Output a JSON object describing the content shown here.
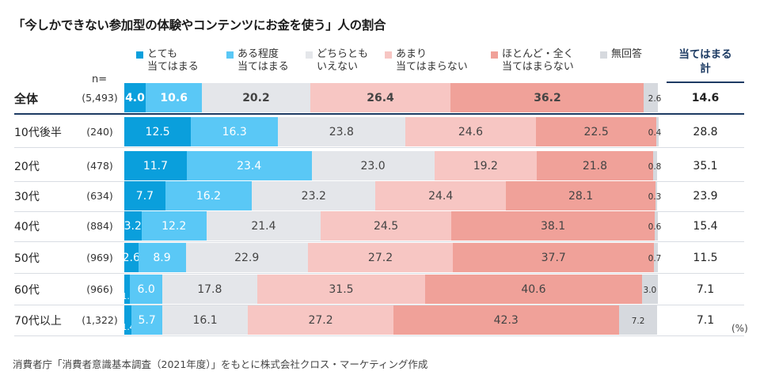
{
  "chart_data": {
    "type": "bar",
    "orientation": "horizontal",
    "stacked": true,
    "title": "「今しかできない参加型の体験やコンテンツにお金を使う」人の割合",
    "n_header": "n=",
    "total_header": [
      "当てはまる",
      "計"
    ],
    "unit": "(%)",
    "series": [
      {
        "name": [
          "とても",
          "当てはまる"
        ],
        "color": "#0a9fdc",
        "text_color": "#ffffff"
      },
      {
        "name": [
          "ある程度",
          "当てはまる"
        ],
        "color": "#5ac8f6",
        "text_color": "#ffffff"
      },
      {
        "name": [
          "どちらとも",
          "いえない"
        ],
        "color": "#e4e6ea",
        "text_color": "#444444"
      },
      {
        "name": [
          "あまり",
          "当てはまらない"
        ],
        "color": "#f7c6c3",
        "text_color": "#444444"
      },
      {
        "name": [
          "ほとんど・全く",
          "当てはまらない"
        ],
        "color": "#f0a199",
        "text_color": "#444444"
      },
      {
        "name": [
          "無回答"
        ],
        "color": "#d6d9de",
        "text_color": "#333333"
      }
    ],
    "rows": [
      {
        "label": "全体",
        "n": "(5,493)",
        "values": [
          4.0,
          10.6,
          20.2,
          26.4,
          36.2,
          2.6
        ],
        "labels": [
          "4.0",
          "10.6",
          "20.2",
          "26.4",
          "36.2",
          "2.6"
        ],
        "total": "14.6",
        "bold": true
      },
      {
        "label": "10代後半",
        "n": "(240)",
        "values": [
          12.5,
          16.3,
          23.8,
          24.6,
          22.5,
          0.4
        ],
        "labels": [
          "12.5",
          "16.3",
          "23.8",
          "24.6",
          "22.5",
          "0.4"
        ],
        "total": "28.8",
        "bold": false
      },
      {
        "label": "20代",
        "n": "(478)",
        "values": [
          11.7,
          23.4,
          23.0,
          19.2,
          21.8,
          0.8
        ],
        "labels": [
          "11.7",
          "23.4",
          "23.0",
          "19.2",
          "21.8",
          "0.8"
        ],
        "total": "35.1",
        "bold": false
      },
      {
        "label": "30代",
        "n": "(634)",
        "values": [
          7.7,
          16.2,
          23.2,
          24.4,
          28.1,
          0.3
        ],
        "labels": [
          "7.7",
          "16.2",
          "23.2",
          "24.4",
          "28.1",
          "0.3"
        ],
        "total": "23.9",
        "bold": false
      },
      {
        "label": "40代",
        "n": "(884)",
        "values": [
          3.2,
          12.2,
          21.4,
          24.5,
          38.1,
          0.6
        ],
        "labels": [
          "3.2",
          "12.2",
          "21.4",
          "24.5",
          "38.1",
          "0.6"
        ],
        "total": "15.4",
        "bold": false
      },
      {
        "label": "50代",
        "n": "(969)",
        "values": [
          2.6,
          8.9,
          22.9,
          27.2,
          37.7,
          0.7
        ],
        "labels": [
          "2.6",
          "8.9",
          "22.9",
          "27.2",
          "37.7",
          "0.7"
        ],
        "total": "11.5",
        "bold": false
      },
      {
        "label": "60代",
        "n": "(966)",
        "values": [
          1.1,
          6.0,
          17.8,
          31.5,
          40.6,
          3.0
        ],
        "labels": [
          "1.1",
          "6.0",
          "17.8",
          "31.5",
          "40.6",
          "3.0"
        ],
        "total": "7.1",
        "bold": false
      },
      {
        "label": "70代以上",
        "n": "(1,322)",
        "values": [
          1.4,
          5.7,
          16.1,
          27.2,
          42.3,
          7.2
        ],
        "labels": [
          "1.4",
          "5.7",
          "16.1",
          "27.2",
          "42.3",
          "7.2"
        ],
        "total": "7.1",
        "bold": false
      }
    ],
    "xlim": [
      0,
      100
    ]
  },
  "source": "消費者庁「消費者意識基本調査（2021年度）」をもとに株式会社クロス・マーケティング作成"
}
